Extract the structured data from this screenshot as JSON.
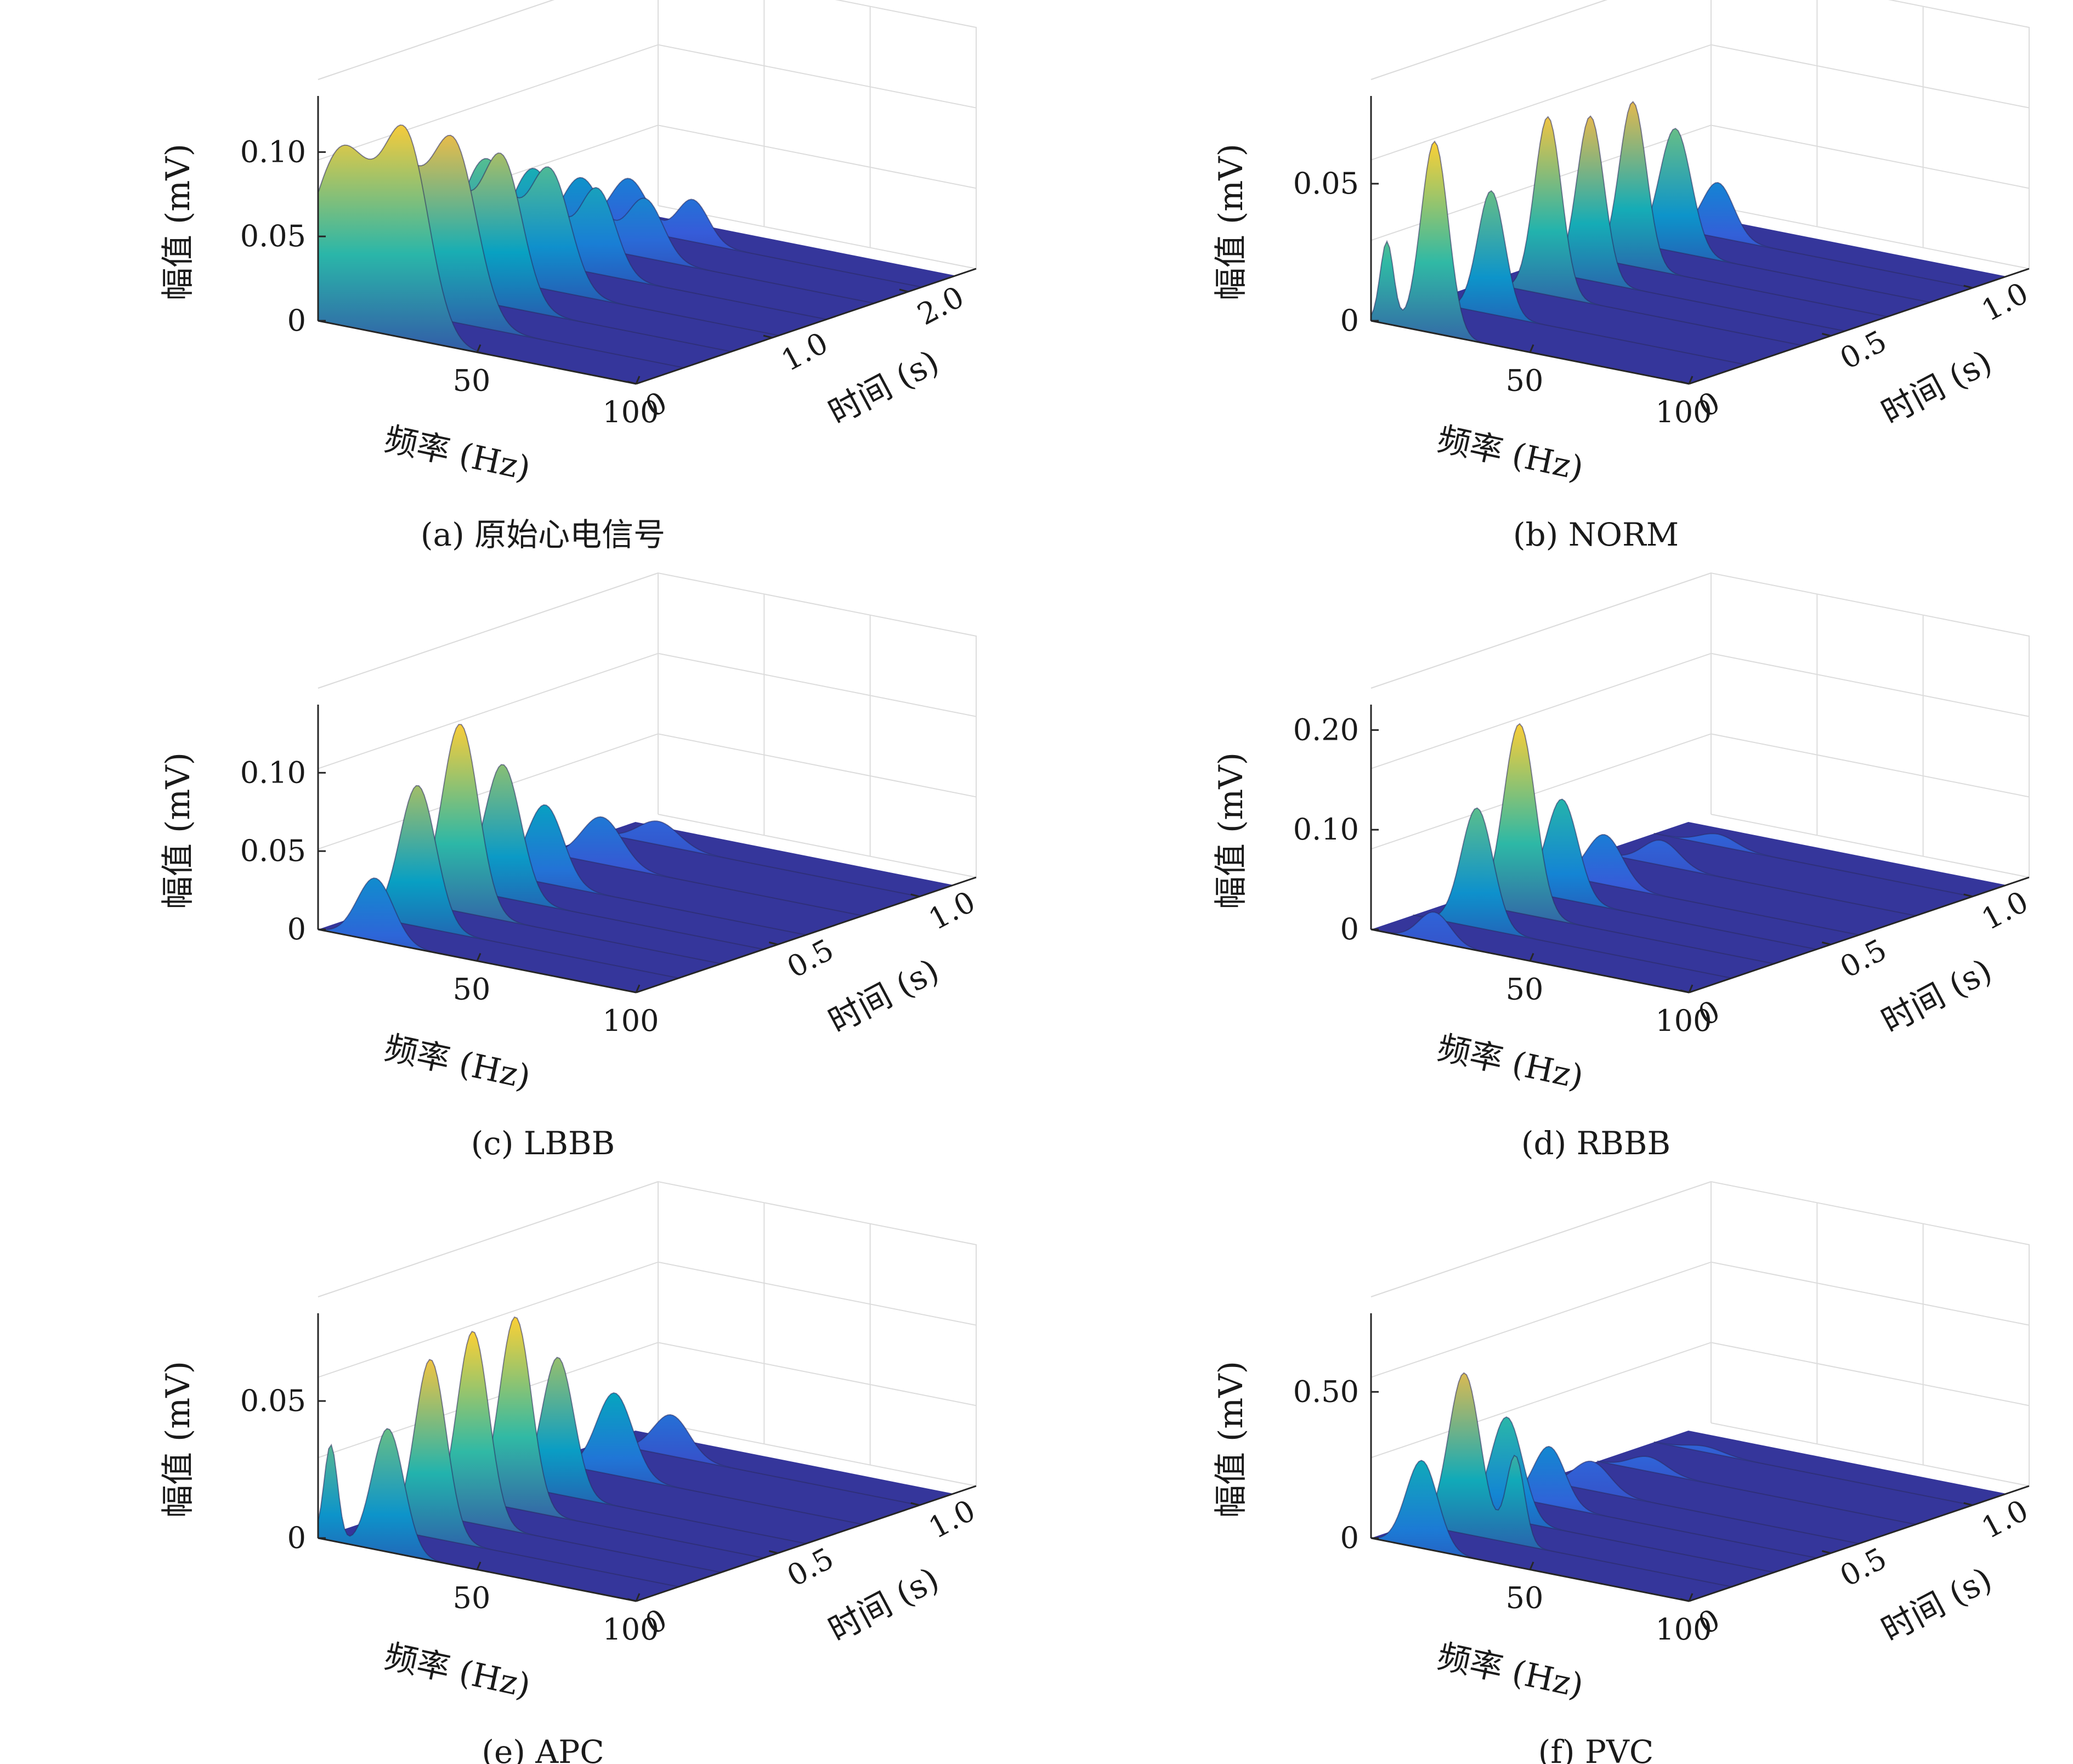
{
  "figure": {
    "type": "3d-surface-grid",
    "panels_count": 6
  },
  "chart_data": [
    {
      "type": "surface3d",
      "caption": "(a) 原始心电信号",
      "xlabel": "频率 (Hz)",
      "ylabel": "时间 (s)",
      "zlabel": "幅值 (mV)",
      "x_ticks": [
        "50",
        "100"
      ],
      "x_range": [
        0,
        100
      ],
      "y_ticks": [
        "0",
        "1.0",
        "2.0"
      ],
      "y_range": [
        0,
        2.5
      ],
      "z_ticks": [
        "0",
        "0.05",
        "0.10"
      ],
      "z_range": [
        0,
        0.13
      ],
      "colormap": "parula",
      "grid": true,
      "slices": [
        {
          "t": 0.0,
          "peaks": [
            {
              "f": 8,
              "a": 0.105,
              "w": 14
            },
            {
              "f": 28,
              "a": 0.11,
              "w": 10
            }
          ]
        },
        {
          "t": 0.35,
          "peaks": [
            {
              "f": 8,
              "a": 0.095,
              "w": 13
            },
            {
              "f": 28,
              "a": 0.1,
              "w": 10
            }
          ]
        },
        {
          "t": 0.7,
          "peaks": [
            {
              "f": 8,
              "a": 0.08,
              "w": 12
            },
            {
              "f": 28,
              "a": 0.085,
              "w": 9
            }
          ]
        },
        {
          "t": 1.05,
          "peaks": [
            {
              "f": 8,
              "a": 0.07,
              "w": 11
            },
            {
              "f": 28,
              "a": 0.07,
              "w": 9
            }
          ]
        },
        {
          "t": 1.4,
          "peaks": [
            {
              "f": 8,
              "a": 0.055,
              "w": 10
            },
            {
              "f": 28,
              "a": 0.05,
              "w": 8
            }
          ]
        },
        {
          "t": 1.75,
          "peaks": [
            {
              "f": 8,
              "a": 0.04,
              "w": 9
            },
            {
              "f": 28,
              "a": 0.035,
              "w": 8
            }
          ]
        },
        {
          "t": 2.1,
          "peaks": [
            {
              "f": 8,
              "a": 0.03,
              "w": 8
            },
            {
              "f": 28,
              "a": 0.025,
              "w": 7
            }
          ]
        }
      ]
    },
    {
      "type": "surface3d",
      "caption": "(b) NORM",
      "xlabel": "频率 (Hz)",
      "ylabel": "时间 (s)",
      "zlabel": "幅值 (mV)",
      "x_ticks": [
        "50",
        "100"
      ],
      "x_range": [
        0,
        100
      ],
      "y_ticks": [
        "0",
        "0.5",
        "1.0"
      ],
      "y_range": [
        0,
        1.2
      ],
      "z_ticks": [
        "0",
        "0.05"
      ],
      "z_range": [
        0,
        0.08
      ],
      "colormap": "parula",
      "grid": true,
      "slices": [
        {
          "t": 0.0,
          "peaks": [
            {
              "f": 5,
              "a": 0.03,
              "w": 3
            },
            {
              "f": 20,
              "a": 0.07,
              "w": 6
            }
          ]
        },
        {
          "t": 0.2,
          "peaks": [
            {
              "f": 20,
              "a": 0.045,
              "w": 6
            }
          ]
        },
        {
          "t": 0.4,
          "peaks": [
            {
              "f": 20,
              "a": 0.065,
              "w": 6
            }
          ]
        },
        {
          "t": 0.55,
          "peaks": [
            {
              "f": 20,
              "a": 0.06,
              "w": 6
            }
          ]
        },
        {
          "t": 0.7,
          "peaks": [
            {
              "f": 20,
              "a": 0.06,
              "w": 6
            }
          ]
        },
        {
          "t": 0.85,
          "peaks": [
            {
              "f": 20,
              "a": 0.045,
              "w": 7
            }
          ]
        },
        {
          "t": 1.0,
          "peaks": [
            {
              "f": 20,
              "a": 0.02,
              "w": 7
            }
          ]
        }
      ]
    },
    {
      "type": "surface3d",
      "caption": "(c) LBBB",
      "xlabel": "频率 (Hz)",
      "ylabel": "时间 (s)",
      "zlabel": "幅值 (mV)",
      "x_ticks": [
        "50",
        "100"
      ],
      "x_range": [
        0,
        100
      ],
      "y_ticks": [
        "0.5",
        "1.0"
      ],
      "y_range": [
        0,
        1.2
      ],
      "z_ticks": [
        "0",
        "0.05",
        "0.10"
      ],
      "z_range": [
        0,
        0.14
      ],
      "colormap": "parula",
      "grid": true,
      "slices": [
        {
          "t": 0.0,
          "peaks": [
            {
              "f": 18,
              "a": 0.04,
              "w": 8
            }
          ]
        },
        {
          "t": 0.15,
          "peaks": [
            {
              "f": 18,
              "a": 0.09,
              "w": 8
            }
          ]
        },
        {
          "t": 0.3,
          "peaks": [
            {
              "f": 18,
              "a": 0.12,
              "w": 8
            }
          ]
        },
        {
          "t": 0.45,
          "peaks": [
            {
              "f": 18,
              "a": 0.085,
              "w": 8
            }
          ]
        },
        {
          "t": 0.6,
          "peaks": [
            {
              "f": 18,
              "a": 0.05,
              "w": 8
            }
          ]
        },
        {
          "t": 0.8,
          "peaks": [
            {
              "f": 18,
              "a": 0.03,
              "w": 9
            }
          ]
        },
        {
          "t": 1.0,
          "peaks": [
            {
              "f": 18,
              "a": 0.015,
              "w": 9
            }
          ]
        }
      ]
    },
    {
      "type": "surface3d",
      "caption": "(d) RBBB",
      "xlabel": "频率 (Hz)",
      "ylabel": "时间 (s)",
      "zlabel": "幅值 (mV)",
      "x_ticks": [
        "50",
        "100"
      ],
      "x_range": [
        0,
        100
      ],
      "y_ticks": [
        "0",
        "0.5",
        "1.0"
      ],
      "y_range": [
        0,
        1.2
      ],
      "z_ticks": [
        "0",
        "0.10",
        "0.20"
      ],
      "z_range": [
        0,
        0.22
      ],
      "colormap": "parula",
      "grid": true,
      "slices": [
        {
          "t": 0.0,
          "peaks": [
            {
              "f": 20,
              "a": 0.03,
              "w": 7
            }
          ]
        },
        {
          "t": 0.15,
          "peaks": [
            {
              "f": 20,
              "a": 0.12,
              "w": 7
            }
          ]
        },
        {
          "t": 0.3,
          "peaks": [
            {
              "f": 20,
              "a": 0.19,
              "w": 7
            }
          ]
        },
        {
          "t": 0.45,
          "peaks": [
            {
              "f": 20,
              "a": 0.1,
              "w": 7
            }
          ]
        },
        {
          "t": 0.6,
          "peaks": [
            {
              "f": 20,
              "a": 0.05,
              "w": 8
            }
          ]
        },
        {
          "t": 0.8,
          "peaks": [
            {
              "f": 20,
              "a": 0.025,
              "w": 8
            }
          ]
        },
        {
          "t": 1.0,
          "peaks": [
            {
              "f": 20,
              "a": 0.012,
              "w": 8
            }
          ]
        }
      ]
    },
    {
      "type": "surface3d",
      "caption": "(e) APC",
      "xlabel": "频率 (Hz)",
      "ylabel": "时间 (s)",
      "zlabel": "幅值 (mV)",
      "x_ticks": [
        "50",
        "100"
      ],
      "x_range": [
        0,
        100
      ],
      "y_ticks": [
        "0",
        "0.5",
        "1.0"
      ],
      "y_range": [
        0,
        1.2
      ],
      "z_ticks": [
        "0",
        "0.05"
      ],
      "z_range": [
        0,
        0.08
      ],
      "colormap": "parula",
      "grid": true,
      "slices": [
        {
          "t": 0.0,
          "peaks": [
            {
              "f": 4,
              "a": 0.035,
              "w": 3
            },
            {
              "f": 22,
              "a": 0.045,
              "w": 7
            }
          ]
        },
        {
          "t": 0.15,
          "peaks": [
            {
              "f": 22,
              "a": 0.065,
              "w": 7
            }
          ]
        },
        {
          "t": 0.3,
          "peaks": [
            {
              "f": 22,
              "a": 0.07,
              "w": 7
            }
          ]
        },
        {
          "t": 0.45,
          "peaks": [
            {
              "f": 22,
              "a": 0.07,
              "w": 7
            }
          ]
        },
        {
          "t": 0.6,
          "peaks": [
            {
              "f": 22,
              "a": 0.05,
              "w": 7
            }
          ]
        },
        {
          "t": 0.8,
          "peaks": [
            {
              "f": 22,
              "a": 0.03,
              "w": 8
            }
          ]
        },
        {
          "t": 1.0,
          "peaks": [
            {
              "f": 22,
              "a": 0.015,
              "w": 8
            }
          ]
        }
      ]
    },
    {
      "type": "surface3d",
      "caption": "(f) PVC",
      "xlabel": "频率 (Hz)",
      "ylabel": "时间 (s)",
      "zlabel": "幅值 (mV)",
      "x_ticks": [
        "50",
        "100"
      ],
      "x_range": [
        0,
        100
      ],
      "y_ticks": [
        "0",
        "0.5",
        "1.0"
      ],
      "y_range": [
        0,
        1.2
      ],
      "z_ticks": [
        "0",
        "0.50"
      ],
      "z_range": [
        0,
        0.75
      ],
      "colormap": "parula",
      "grid": true,
      "slices": [
        {
          "t": 0.0,
          "peaks": [
            {
              "f": 16,
              "a": 0.3,
              "w": 7
            }
          ]
        },
        {
          "t": 0.15,
          "peaks": [
            {
              "f": 16,
              "a": 0.55,
              "w": 7
            },
            {
              "f": 32,
              "a": 0.3,
              "w": 4
            }
          ]
        },
        {
          "t": 0.3,
          "peaks": [
            {
              "f": 16,
              "a": 0.35,
              "w": 7
            }
          ]
        },
        {
          "t": 0.45,
          "peaks": [
            {
              "f": 16,
              "a": 0.2,
              "w": 7
            }
          ]
        },
        {
          "t": 0.6,
          "peaks": [
            {
              "f": 16,
              "a": 0.1,
              "w": 8
            }
          ]
        },
        {
          "t": 0.8,
          "peaks": [
            {
              "f": 16,
              "a": 0.05,
              "w": 8
            }
          ]
        },
        {
          "t": 1.0,
          "peaks": [
            {
              "f": 16,
              "a": 0.02,
              "w": 8
            }
          ]
        }
      ]
    }
  ]
}
